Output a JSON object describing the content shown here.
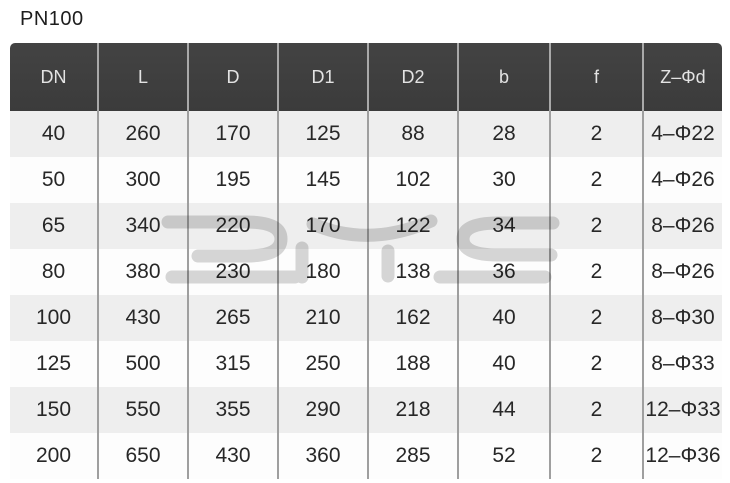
{
  "title": "PN100",
  "colors": {
    "page_bg": "#ffffff",
    "title_text": "#1d1d1d",
    "header_bg": "#3b3b3b",
    "header_text": "#e3e3e3",
    "header_separator": "#a9a9a9",
    "separator": "#9f9f9f",
    "stripe": "#eeeeee",
    "row_bg": "#fdfdfd",
    "cell_text": "#272727",
    "watermark": "#d7d7d7"
  },
  "table": {
    "columns": [
      "DN",
      "L",
      "D",
      "D1",
      "D2",
      "b",
      "f",
      "Z–Φd"
    ],
    "rows": [
      [
        "40",
        "260",
        "170",
        "125",
        "88",
        "28",
        "2",
        "4–Φ22"
      ],
      [
        "50",
        "300",
        "195",
        "145",
        "102",
        "30",
        "2",
        "4–Φ26"
      ],
      [
        "65",
        "340",
        "220",
        "170",
        "122",
        "34",
        "2",
        "8–Φ26"
      ],
      [
        "80",
        "380",
        "230",
        "180",
        "138",
        "36",
        "2",
        "8–Φ26"
      ],
      [
        "100",
        "430",
        "265",
        "210",
        "162",
        "40",
        "2",
        "8–Φ30"
      ],
      [
        "125",
        "500",
        "315",
        "250",
        "188",
        "40",
        "2",
        "8–Φ33"
      ],
      [
        "150",
        "550",
        "355",
        "290",
        "218",
        "44",
        "2",
        "12–Φ33"
      ],
      [
        "200",
        "650",
        "430",
        "360",
        "285",
        "52",
        "2",
        "12–Φ36"
      ]
    ]
  },
  "watermark_name": "dye-logo"
}
